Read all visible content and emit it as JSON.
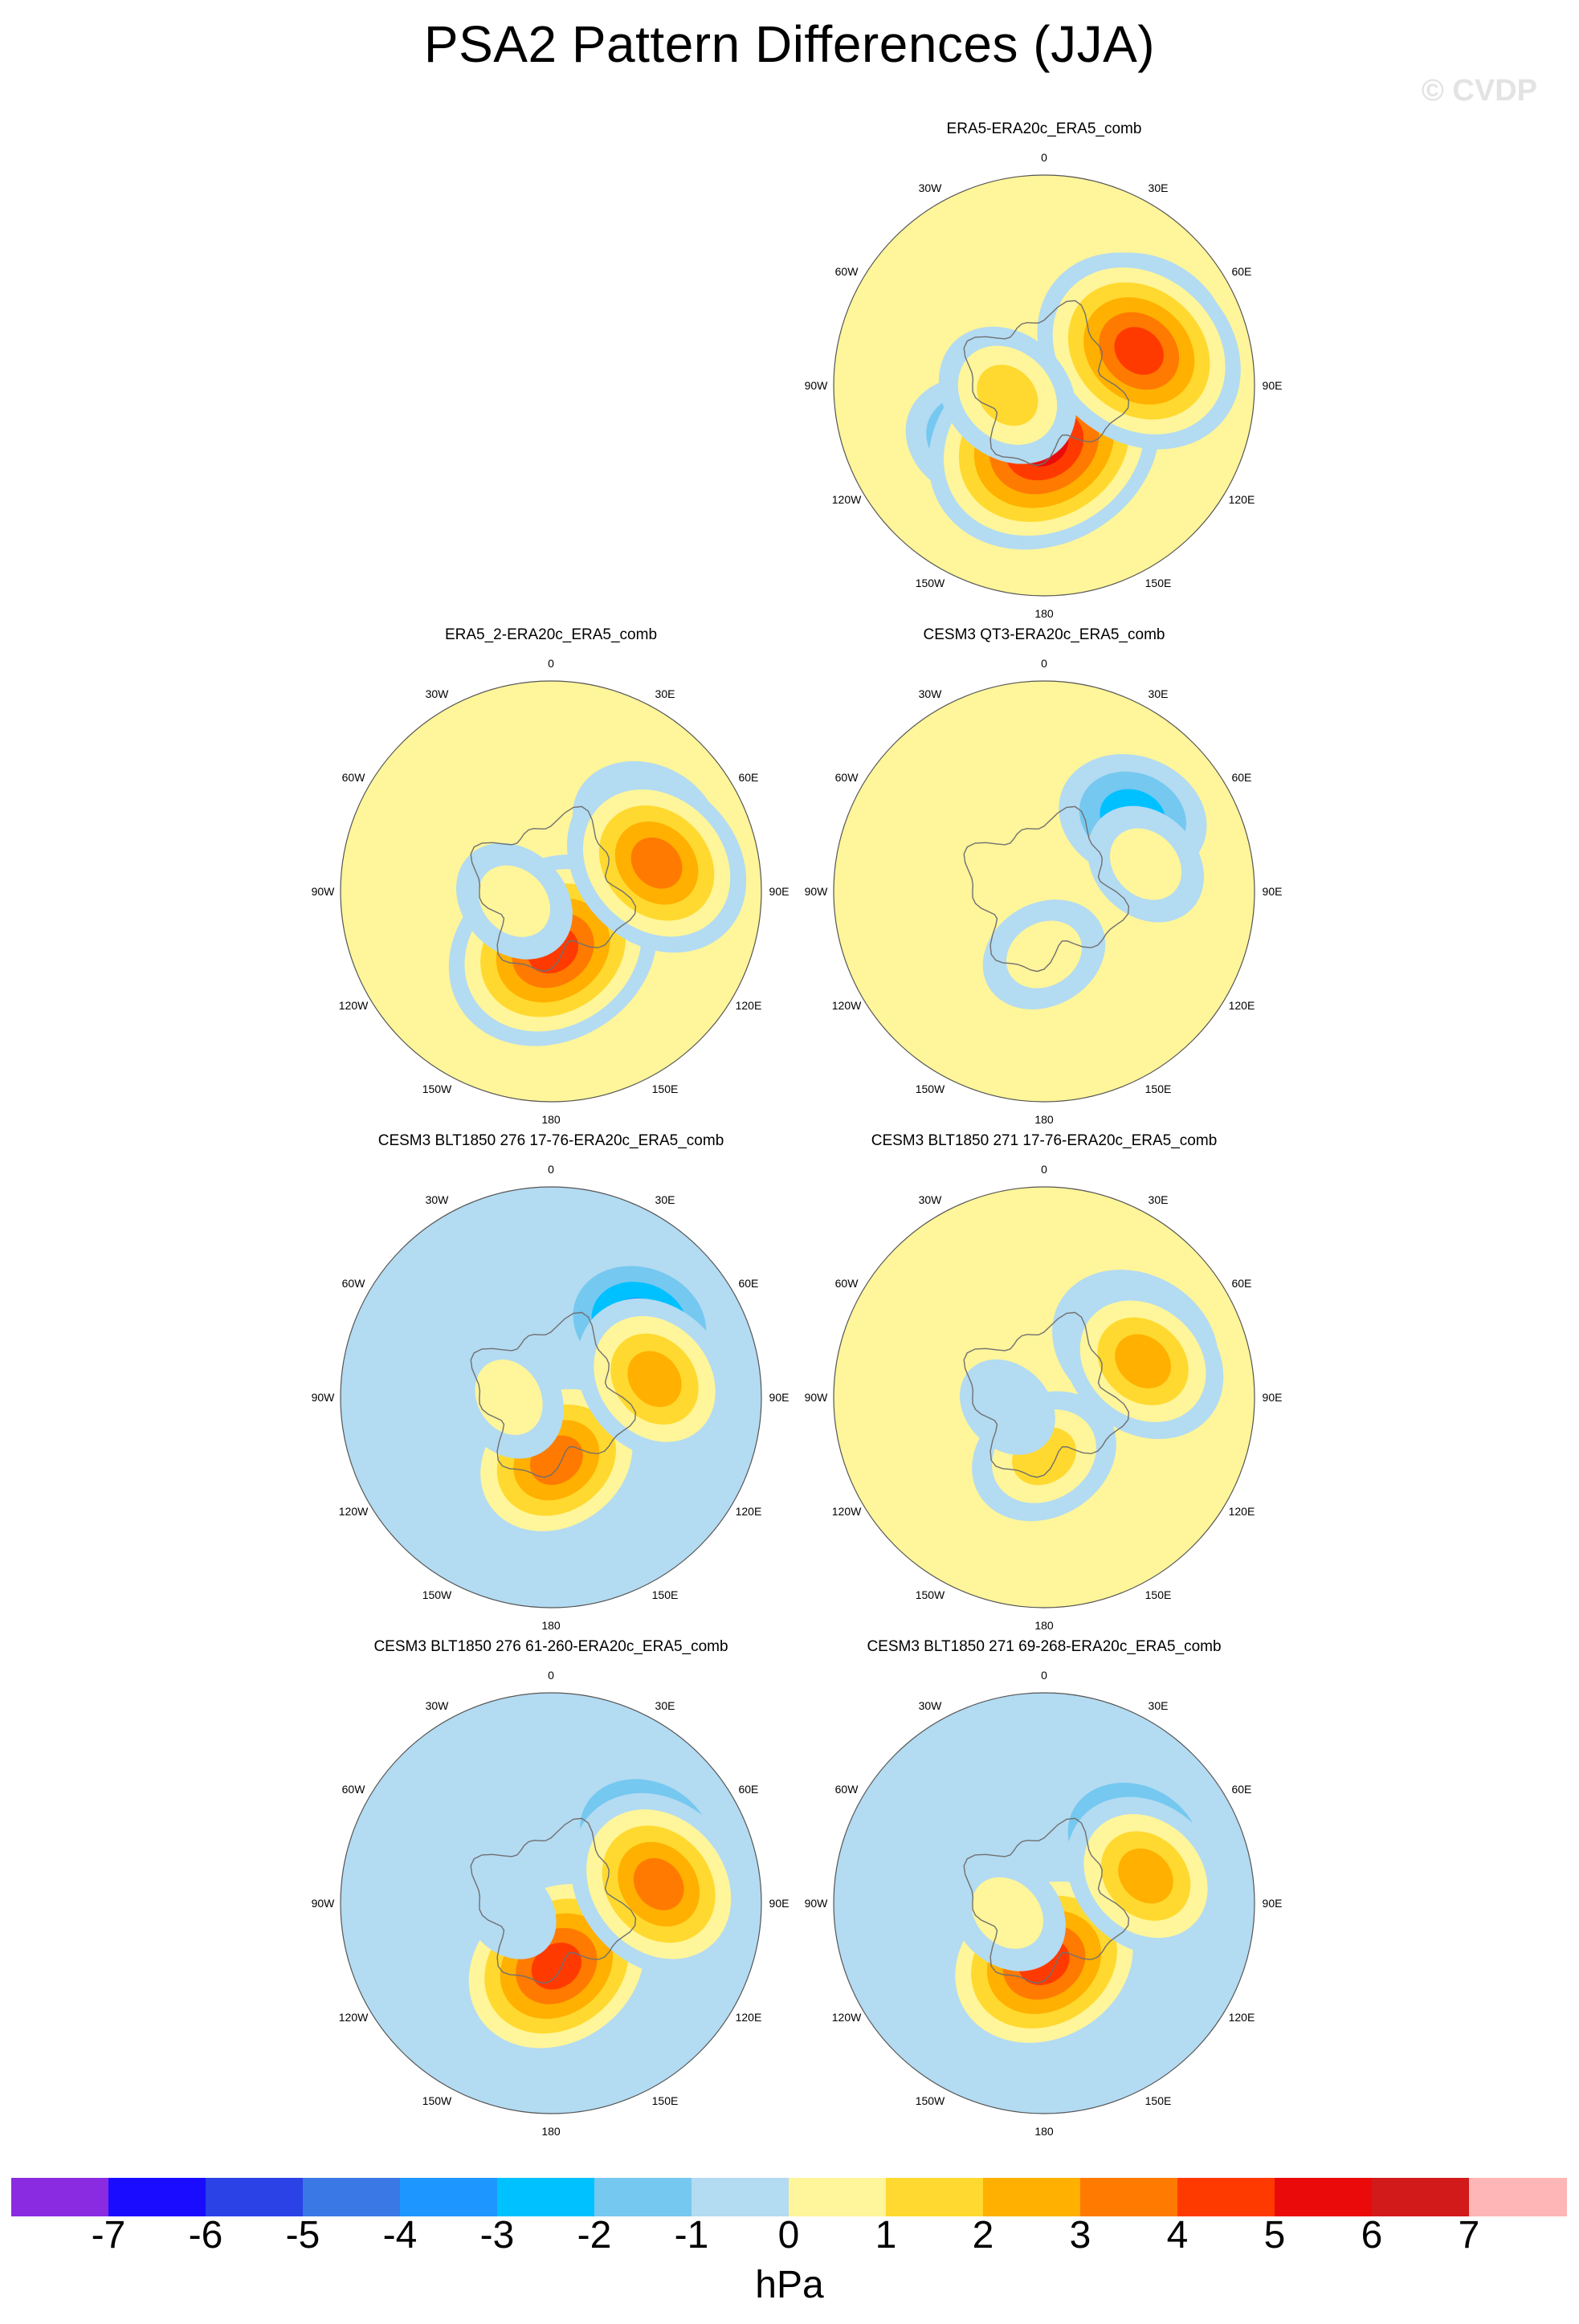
{
  "title": "PSA2 Pattern Differences (JJA)",
  "watermark": "© CVDP",
  "colors": {
    "ocean": "#b3dbf2",
    "coast": "#707070"
  },
  "lon_labels": [
    "0",
    "30E",
    "60E",
    "90E",
    "120E",
    "150E",
    "180",
    "150W",
    "120W",
    "90W",
    "60W",
    "30W"
  ],
  "panels": [
    {
      "title": "ERA5-ERA20c_ERA5_comb",
      "background": "pos",
      "blobs": [
        {
          "lon": 180,
          "r": 0.28,
          "sign": 1,
          "amp": 7
        },
        {
          "lon": 70,
          "r": 0.48,
          "sign": 1,
          "amp": 6
        },
        {
          "lon": 255,
          "r": 0.18,
          "sign": 1,
          "amp": 3
        },
        {
          "lon": 60,
          "r": 0.55,
          "sign": -1,
          "amp": 4
        },
        {
          "lon": 230,
          "r": 0.4,
          "sign": -1,
          "amp": 3
        }
      ]
    },
    {
      "title": "ERA5_2-ERA20c_ERA5_comb",
      "background": "pos",
      "blobs": [
        {
          "lon": 178,
          "r": 0.28,
          "sign": 1,
          "amp": 6
        },
        {
          "lon": 75,
          "r": 0.52,
          "sign": 1,
          "amp": 5
        },
        {
          "lon": 255,
          "r": 0.18,
          "sign": 1,
          "amp": 2
        },
        {
          "lon": 55,
          "r": 0.55,
          "sign": -1,
          "amp": 3
        }
      ]
    },
    {
      "title": "CESM3 QT3-ERA20c_ERA5_comb",
      "background": "pos",
      "blobs": [
        {
          "lon": 180,
          "r": 0.3,
          "sign": 1,
          "amp": 2
        },
        {
          "lon": 75,
          "r": 0.5,
          "sign": 1,
          "amp": 2
        },
        {
          "lon": 50,
          "r": 0.55,
          "sign": -1,
          "amp": 3
        }
      ]
    },
    {
      "title": "CESM3 BLT1850 276 17-76-ERA20c_ERA5_comb",
      "background": "neg",
      "blobs": [
        {
          "lon": 175,
          "r": 0.3,
          "sign": 1,
          "amp": 5
        },
        {
          "lon": 80,
          "r": 0.5,
          "sign": 1,
          "amp": 4
        },
        {
          "lon": 270,
          "r": 0.2,
          "sign": 1,
          "amp": 2
        },
        {
          "lon": 50,
          "r": 0.55,
          "sign": -1,
          "amp": 4
        }
      ]
    },
    {
      "title": "CESM3 BLT1850 271 17-76-ERA20c_ERA5_comb",
      "background": "pos",
      "blobs": [
        {
          "lon": 180,
          "r": 0.28,
          "sign": 1,
          "amp": 3
        },
        {
          "lon": 70,
          "r": 0.5,
          "sign": 1,
          "amp": 4
        },
        {
          "lon": 255,
          "r": 0.18,
          "sign": 1,
          "amp": 1
        },
        {
          "lon": 60,
          "r": 0.5,
          "sign": -1,
          "amp": 4
        }
      ]
    },
    {
      "title": "CESM3 BLT1850 276 61-260-ERA20c_ERA5_comb",
      "background": "neg",
      "blobs": [
        {
          "lon": 175,
          "r": 0.3,
          "sign": 1,
          "amp": 6
        },
        {
          "lon": 80,
          "r": 0.52,
          "sign": 1,
          "amp": 5
        },
        {
          "lon": 260,
          "r": 0.2,
          "sign": 1,
          "amp": 1
        },
        {
          "lon": 55,
          "r": 0.55,
          "sign": -1,
          "amp": 4
        }
      ]
    },
    {
      "title": "CESM3 BLT1850 271 69-268-ERA20c_ERA5_comb",
      "background": "neg",
      "blobs": [
        {
          "lon": 180,
          "r": 0.28,
          "sign": 1,
          "amp": 6
        },
        {
          "lon": 75,
          "r": 0.5,
          "sign": 1,
          "amp": 4
        },
        {
          "lon": 255,
          "r": 0.18,
          "sign": 1,
          "amp": 2
        },
        {
          "lon": 55,
          "r": 0.52,
          "sign": -1,
          "amp": 4
        }
      ]
    }
  ],
  "colorbar": {
    "ticks": [
      "-7",
      "-6",
      "-5",
      "-4",
      "-3",
      "-2",
      "-1",
      "0",
      "1",
      "2",
      "3",
      "4",
      "5",
      "6",
      "7"
    ],
    "colors": [
      "#8a2be2",
      "#1a0dff",
      "#2a42e6",
      "#3a78e6",
      "#1e96ff",
      "#00c1ff",
      "#75c8f0",
      "#b3dbf2",
      "#fff59a",
      "#ffd92f",
      "#ffb000",
      "#ff7a00",
      "#ff3a00",
      "#ea0a0a",
      "#d21a1a",
      "#ffb6b6"
    ],
    "units": "hPa"
  }
}
